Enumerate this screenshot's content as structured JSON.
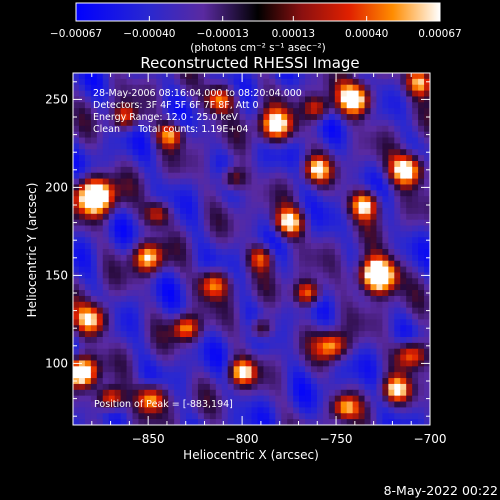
{
  "chart_data": {
    "type": "heatmap",
    "title": "Reconstructed RHESSI Image",
    "xlabel": "Heliocentric X (arcsec)",
    "ylabel": "Heliocentric Y (arcsec)",
    "xlim": [
      -890,
      -700
    ],
    "ylim": [
      65,
      265
    ],
    "x_ticks": [
      -850,
      -800,
      -750,
      -700
    ],
    "x_tick_labels": [
      "−850",
      "−800",
      "−750",
      "−700"
    ],
    "y_ticks": [
      100,
      150,
      200,
      250
    ],
    "y_tick_labels": [
      "100",
      "150",
      "200",
      "250"
    ],
    "colorbar": {
      "range": [
        -0.00067,
        0.00067
      ],
      "ticks": [
        -0.00067,
        -0.0004,
        -0.00013,
        0.00013,
        0.0004,
        0.00067
      ],
      "tick_labels": [
        "−0.00067",
        "−0.00040",
        "−0.00013",
        "0.00013",
        "0.00040",
        "0.00067"
      ],
      "units_label": "(photons cm⁻² s⁻¹ asec⁻²)"
    },
    "annotations": [
      "28-May-2006 08:16:04.000 to 08:20:04.000",
      "Detectors: 3F 4F 5F 6F 7F 8F, Att 0",
      "Energy Range: 12.0 - 25.0 keV",
      "Clean      Total counts: 1.19E+04"
    ],
    "peak_label": "Position of Peak = [-883,194]",
    "peak": [
      -883,
      194
    ],
    "grid": false
  },
  "footer": {
    "timestamp": "8-May-2022 00:22"
  },
  "colors": {
    "background": "#000000",
    "foreground": "#ffffff"
  }
}
